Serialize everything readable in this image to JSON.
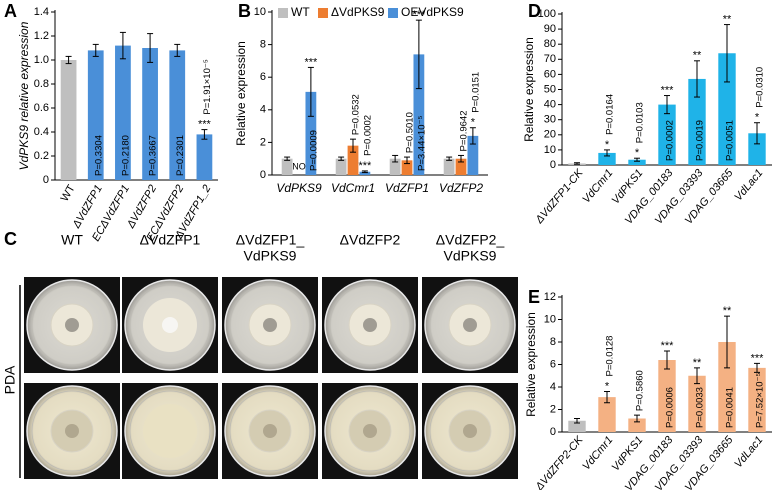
{
  "chart_data": [
    {
      "type": "bar",
      "panel": "A",
      "ylabel": "VdPKS9 relative expression",
      "categories": [
        "WT",
        "ΔVdZFP1",
        "ECΔVdZFP1",
        "ΔVdZFP2",
        "ECΔVdZFP2",
        "ΔVdZFP1_2"
      ],
      "values": [
        1.0,
        1.08,
        1.12,
        1.1,
        1.08,
        0.38
      ],
      "errors": [
        0.03,
        0.05,
        0.11,
        0.12,
        0.05,
        0.04
      ],
      "colors": [
        "#bfbfbf",
        "#4a8fd8",
        "#4a8fd8",
        "#4a8fd8",
        "#4a8fd8",
        "#4a8fd8"
      ],
      "p_labels": [
        null,
        "P=0.3304",
        "P=0.2180",
        "P=0.3667",
        "P=0.2301",
        "P=1.91×10⁻⁵"
      ],
      "stars": [
        null,
        null,
        null,
        null,
        null,
        "***"
      ],
      "ylim": [
        0,
        1.4
      ],
      "yticks": [
        0,
        0.2,
        0.4,
        0.6,
        0.8,
        {
          "value": 1,
          "label": "1.0"
        },
        1.2,
        1.4
      ]
    },
    {
      "type": "grouped_bar",
      "panel": "B",
      "ylabel": "Relative expression",
      "categories": [
        "VdPKS9",
        "VdCmr1",
        "VdZFP1",
        "VdZFP2"
      ],
      "series": [
        {
          "name": "WT",
          "color": "#bfbfbf",
          "values": [
            1.0,
            1.0,
            1.0,
            1.0
          ],
          "errors": [
            0.1,
            0.1,
            0.2,
            0.1
          ],
          "p_labels": [
            null,
            null,
            null,
            null
          ],
          "stars": [
            null,
            null,
            null,
            null
          ]
        },
        {
          "name": "ΔVdPKS9",
          "color": "#ed7d31",
          "values": [
            null,
            1.8,
            0.9,
            1.0
          ],
          "errors": [
            null,
            0.4,
            0.2,
            0.2
          ],
          "nd_labels": [
            "NO",
            null,
            null,
            null
          ],
          "p_labels": [
            null,
            "P=0.0532",
            "P=0.5010",
            "P=0.9642"
          ],
          "stars": [
            null,
            null,
            null,
            null
          ]
        },
        {
          "name": "OEVdPKS9",
          "color": "#4a8fd8",
          "values": [
            5.1,
            0.2,
            7.4,
            2.4
          ],
          "errors": [
            1.5,
            0.05,
            2.1,
            0.5
          ],
          "p_labels": [
            "P=0.0009",
            "P=0.0002",
            "P=3.44×10⁻⁵",
            "P=0.0151"
          ],
          "stars": [
            "***",
            "***",
            "***",
            "*"
          ]
        }
      ],
      "ylim": [
        0,
        10
      ],
      "yticks": [
        0,
        2,
        4,
        6,
        8,
        10
      ]
    },
    {
      "type": "bar",
      "panel": "D",
      "ylabel": "Relative expression",
      "categories": [
        "ΔVdZFP1-CK",
        "VdCmr1",
        "VdPKS1",
        "VDAG_00183",
        "VDAG_03393",
        "VDAG_03665",
        "VdLac1"
      ],
      "values": [
        1,
        8,
        3.5,
        40,
        57,
        74,
        21
      ],
      "errors": [
        0.5,
        2,
        1,
        6,
        12,
        19,
        7
      ],
      "colors": [
        "#bfbfbf",
        "#1fb3e8",
        "#1fb3e8",
        "#1fb3e8",
        "#1fb3e8",
        "#1fb3e8",
        "#1fb3e8"
      ],
      "p_labels": [
        null,
        "P=0.0164",
        "P=0.0103",
        "P=0.0002",
        "P=0.0019",
        "P=0.0051",
        "P=0.0310"
      ],
      "stars": [
        null,
        "*",
        "*",
        "***",
        "**",
        "**",
        "*"
      ],
      "ylim": [
        0,
        100
      ],
      "yticks": [
        0,
        10,
        20,
        30,
        40,
        50,
        60,
        70,
        80,
        90,
        100
      ]
    },
    {
      "type": "bar",
      "panel": "E",
      "ylabel": "Relative expression",
      "categories": [
        "ΔVdZFP2-CK",
        "VdCmr1",
        "VdPKS1",
        "VDAG_00183",
        "VDAG_03393",
        "VDAG_03665",
        "VdLac1"
      ],
      "values": [
        1,
        3.1,
        1.2,
        6.4,
        5.0,
        8.0,
        5.7
      ],
      "errors": [
        0.2,
        0.5,
        0.3,
        0.8,
        0.7,
        2.3,
        0.4
      ],
      "colors": [
        "#bfbfbf",
        "#f4b183",
        "#f4b183",
        "#f4b183",
        "#f4b183",
        "#f4b183",
        "#f4b183"
      ],
      "p_labels": [
        null,
        "P=0.0128",
        "P=0.5860",
        "P=0.0006",
        "P=0.0033",
        "P=0.0041",
        "P=7.52×10⁻⁵"
      ],
      "stars": [
        null,
        "*",
        null,
        "***",
        "**",
        "**",
        "***"
      ],
      "ylim": [
        0,
        12
      ],
      "yticks": [
        0,
        2,
        4,
        6,
        8,
        10,
        12
      ]
    }
  ],
  "plates": {
    "panel": "C",
    "columns": [
      [
        "WT"
      ],
      [
        "ΔVdZFP1"
      ],
      [
        "ΔVdZFP1_",
        "VdPKS9"
      ],
      [
        "ΔVdZFP2"
      ],
      [
        "ΔVdZFP2_",
        "VdPKS9"
      ]
    ],
    "row_label": "PDA"
  }
}
